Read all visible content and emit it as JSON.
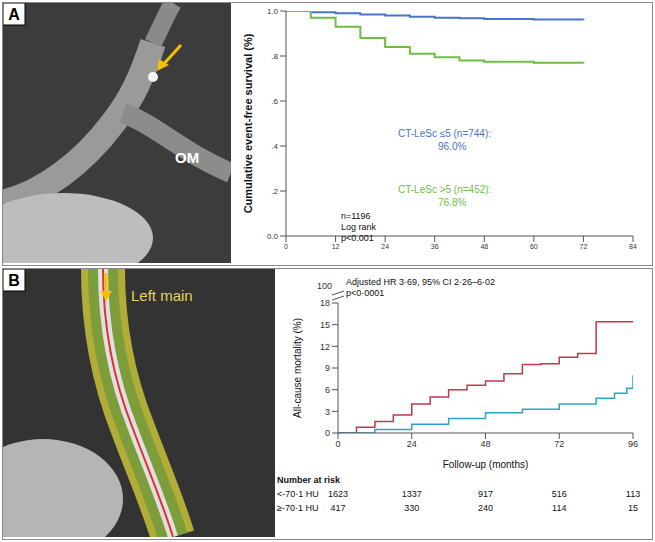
{
  "chart_data": [
    {
      "type": "line",
      "panel_label": "A",
      "image_label": "OM",
      "y_label": "Cumulative event-free survival (%)",
      "xlim": [
        0,
        84
      ],
      "xticks": [
        0,
        12,
        24,
        36,
        48,
        60,
        72,
        84
      ],
      "ylim": [
        0,
        1
      ],
      "yticks": [
        {
          "value": 0,
          "label": "0.0"
        },
        {
          "value": 0.2,
          "label": ".2"
        },
        {
          "value": 0.4,
          "label": ".4"
        },
        {
          "value": 0.6,
          "label": ".6"
        },
        {
          "value": 0.8,
          "label": ".8"
        },
        {
          "value": 1,
          "label": "1.0"
        }
      ],
      "line_style": "step",
      "grid": false,
      "series": [
        {
          "name": "CT-LeSc ≤5 (n=744):",
          "end_label": "96.0%",
          "color": "#4a74c9",
          "x": [
            0,
            6,
            12,
            18,
            24,
            30,
            36,
            42,
            48,
            60,
            72
          ],
          "values": [
            1.0,
            0.995,
            0.99,
            0.985,
            0.98,
            0.975,
            0.97,
            0.968,
            0.965,
            0.962,
            0.96
          ]
        },
        {
          "name": "CT-LeSc >5 (n=452):",
          "end_label": "76.8%",
          "color": "#6dbf44",
          "x": [
            0,
            6,
            12,
            18,
            24,
            30,
            36,
            42,
            48,
            60,
            72
          ],
          "values": [
            1.0,
            0.97,
            0.93,
            0.88,
            0.84,
            0.81,
            0.795,
            0.78,
            0.775,
            0.77,
            0.768
          ]
        }
      ],
      "annotations": [
        "n=1196",
        "Log rank",
        "p<0.001"
      ]
    },
    {
      "type": "line",
      "panel_label": "B",
      "image_label": "Left main",
      "y_label": "All-cause mortality (%)",
      "x_label": "Follow-up (months)",
      "xlim": [
        0,
        96
      ],
      "xticks": [
        0,
        24,
        48,
        72,
        96
      ],
      "ylim": [
        0,
        18
      ],
      "yticks": [
        0,
        3,
        6,
        9,
        12,
        15,
        18
      ],
      "y_break_label": "100",
      "line_style": "step",
      "grid": false,
      "series": [
        {
          "name": "≥-70·1 HU",
          "color": "#c8354a",
          "x": [
            0,
            6,
            12,
            18,
            24,
            30,
            36,
            42,
            48,
            54,
            60,
            66,
            72,
            78,
            84,
            96
          ],
          "values": [
            0,
            0.8,
            1.6,
            2.5,
            4,
            5,
            6,
            6.6,
            7.2,
            8.2,
            9.5,
            9.6,
            10.5,
            11,
            15.4,
            15.4
          ]
        },
        {
          "name": "<-70·1 HU",
          "color": "#2aa6c4",
          "x": [
            0,
            12,
            24,
            36,
            48,
            60,
            72,
            84,
            90,
            94,
            96
          ],
          "values": [
            0,
            0.5,
            1.2,
            2,
            2.8,
            3.3,
            4,
            4.8,
            5.5,
            6.2,
            8
          ]
        }
      ],
      "annotations": [
        "Adjusted HR 3·69, 95% CI 2·26–6·02",
        "p<0·0001"
      ],
      "risk_table": {
        "title": "Number at risk",
        "times": [
          0,
          24,
          48,
          72,
          96
        ],
        "rows": [
          {
            "label": "<-70·1 HU",
            "values": [
              1623,
              1337,
              917,
              516,
              113
            ]
          },
          {
            "label": "≥-70·1 HU",
            "values": [
              417,
              330,
              240,
              114,
              15
            ]
          }
        ]
      }
    }
  ]
}
